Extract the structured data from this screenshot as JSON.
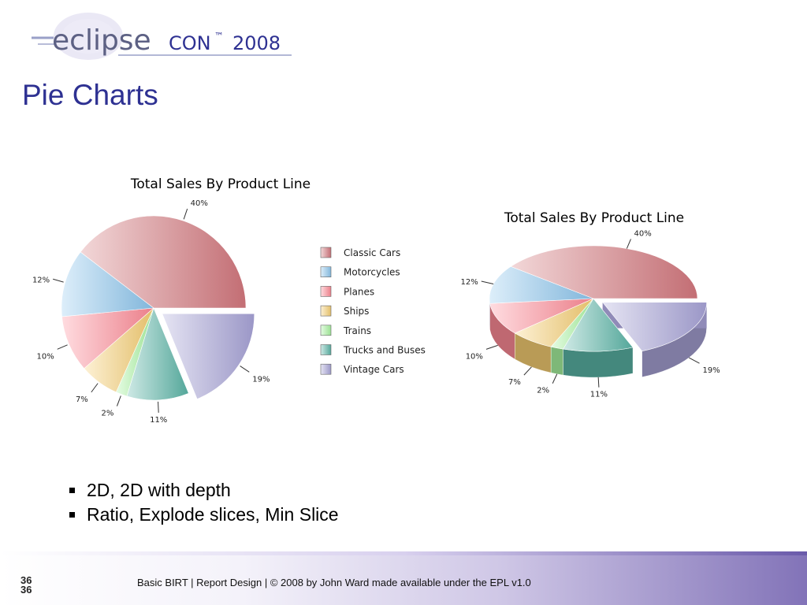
{
  "header": {
    "logo_text_main": "eclipse",
    "logo_text_con": "CON",
    "logo_tm": "™",
    "logo_year": "2008",
    "slide_title": "Pie Charts"
  },
  "chart_data": [
    {
      "type": "pie",
      "variant": "2d, exploded slice",
      "title": "Total Sales By Product Line",
      "categories": [
        "Classic Cars",
        "Motorcycles",
        "Planes",
        "Ships",
        "Trains",
        "Trucks and Buses",
        "Vintage Cars"
      ],
      "values": [
        40,
        12,
        10,
        7,
        2,
        11,
        19
      ],
      "labels": [
        "40%",
        "12%",
        "10%",
        "7%",
        "2%",
        "11%",
        "19%"
      ],
      "exploded": [
        "Vintage Cars"
      ],
      "legend": "right"
    },
    {
      "type": "pie",
      "variant": "2d with depth, exploded slice",
      "title": "Total Sales By Product Line",
      "categories": [
        "Classic Cars",
        "Motorcycles",
        "Planes",
        "Ships",
        "Trains",
        "Trucks and Buses",
        "Vintage Cars"
      ],
      "values": [
        40,
        12,
        10,
        7,
        2,
        11,
        19
      ],
      "labels": [
        "40%",
        "12%",
        "10%",
        "7%",
        "2%",
        "11%",
        "19%"
      ],
      "exploded": [
        "Vintage Cars"
      ]
    }
  ],
  "colors": {
    "Classic Cars": "#d4787e",
    "Motorcycles": "#8cc6ee",
    "Planes": "#ff8a96",
    "Ships": "#f7cf72",
    "Trains": "#a8f5a0",
    "Trucks and Buses": "#5bb5a7",
    "Vintage Cars": "#a9a4d8",
    "title": "#2e3192"
  },
  "bullets": [
    "2D, 2D with depth",
    "Ratio, Explode slices, Min Slice"
  ],
  "footer": {
    "page_number": "36",
    "text": "Basic BIRT  |  Report Design  |  © 2008 by John Ward made available under the EPL v1.0"
  }
}
